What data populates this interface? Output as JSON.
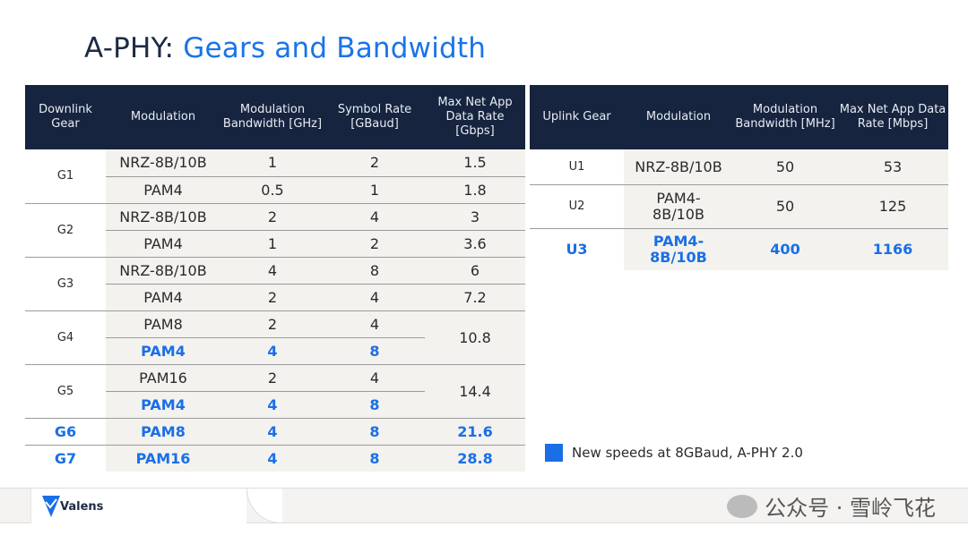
{
  "title": {
    "prefix": "A-PHY:",
    "highlight": "Gears and Bandwidth"
  },
  "downlink": {
    "headers": [
      "Downlink Gear",
      "Modulation",
      "Modulation Bandwidth [GHz]",
      "Symbol Rate [GBaud]",
      "Max Net App Data Rate [Gbps]"
    ],
    "rows": [
      {
        "gear": "G1",
        "mod": "NRZ-8B/10B",
        "bw": "1",
        "sr": "2",
        "rate": "1.5"
      },
      {
        "mod": "PAM4",
        "bw": "0.5",
        "sr": "1",
        "rate": "1.8"
      },
      {
        "gear": "G2",
        "mod": "NRZ-8B/10B",
        "bw": "2",
        "sr": "4",
        "rate": "3"
      },
      {
        "mod": "PAM4",
        "bw": "1",
        "sr": "2",
        "rate": "3.6"
      },
      {
        "gear": "G3",
        "mod": "NRZ-8B/10B",
        "bw": "4",
        "sr": "8",
        "rate": "6"
      },
      {
        "mod": "PAM4",
        "bw": "2",
        "sr": "4",
        "rate": "7.2"
      },
      {
        "gear": "G4",
        "mod": "PAM8",
        "bw": "2",
        "sr": "4",
        "rate": "10.8"
      },
      {
        "mod": "PAM4",
        "bw": "4",
        "sr": "8"
      },
      {
        "gear": "G5",
        "mod": "PAM16",
        "bw": "2",
        "sr": "4",
        "rate": "14.4"
      },
      {
        "mod": "PAM4",
        "bw": "4",
        "sr": "8"
      },
      {
        "gear": "G6",
        "mod": "PAM8",
        "bw": "4",
        "sr": "8",
        "rate": "21.6"
      },
      {
        "gear": "G7",
        "mod": "PAM16",
        "bw": "4",
        "sr": "8",
        "rate": "28.8"
      }
    ]
  },
  "uplink": {
    "headers": [
      "Uplink Gear",
      "Modulation",
      "Modulation Bandwidth [MHz]",
      "Max Net App Data Rate [Mbps]"
    ],
    "rows": [
      {
        "gear": "U1",
        "mod": "NRZ-8B/10B",
        "bw": "50",
        "rate": "53"
      },
      {
        "gear": "U2",
        "mod": "PAM4-8B/10B",
        "bw": "50",
        "rate": "125"
      },
      {
        "gear": "U3",
        "mod": "PAM4-8B/10B",
        "bw": "400",
        "rate": "1166"
      }
    ]
  },
  "legend": "New speeds at 8GBaud, A-PHY 2.0",
  "footer": {
    "logo": "Valens",
    "watermark": "公众号 · 雪岭飞花"
  },
  "colors": {
    "header": "#16243f",
    "new": "#1a6fe6"
  }
}
